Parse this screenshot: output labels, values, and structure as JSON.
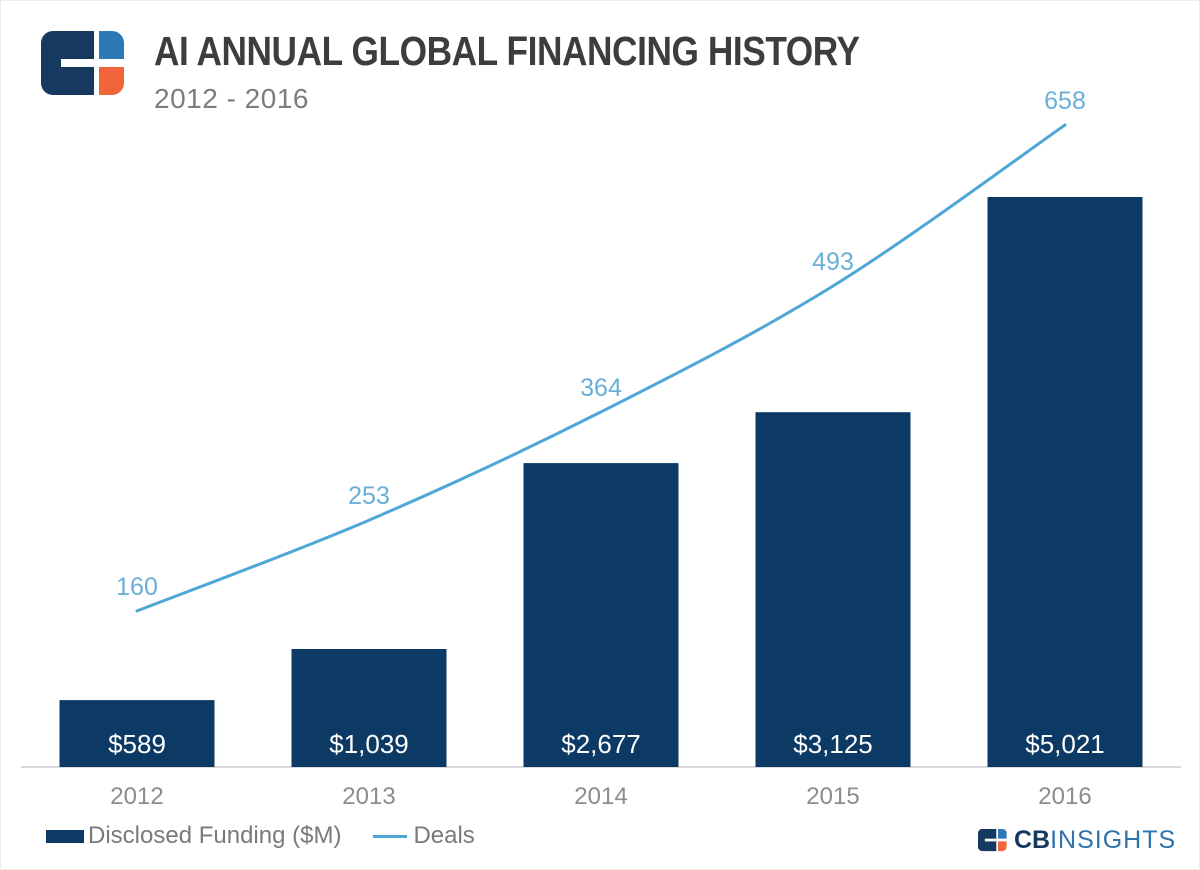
{
  "header": {
    "title": "AI ANNUAL GLOBAL FINANCING HISTORY",
    "subtitle": "2012 - 2016"
  },
  "chart_data": {
    "type": "combo-bar-line",
    "title": "AI ANNUAL GLOBAL FINANCING HISTORY",
    "subtitle": "2012 - 2016",
    "categories": [
      "2012",
      "2013",
      "2014",
      "2015",
      "2016"
    ],
    "series": [
      {
        "name": "Disclosed Funding ($M)",
        "type": "bar",
        "values": [
          589,
          1039,
          2677,
          3125,
          5021
        ],
        "data_labels": [
          "$589",
          "$1,039",
          "$2,677",
          "$3,125",
          "$5,021"
        ],
        "color": "#0d3a64",
        "label_color": "#ffffff"
      },
      {
        "name": "Deals",
        "type": "line",
        "values": [
          160,
          253,
          364,
          493,
          658
        ],
        "data_labels": [
          "160",
          "253",
          "364",
          "493",
          "658"
        ],
        "color": "#4fa7d6",
        "label_color": "#6bafd8"
      }
    ],
    "xlabel": "",
    "ylabel": "",
    "bar_axis": {
      "min": 0
    },
    "line_axis": {
      "min": 0
    },
    "grid": false,
    "legend_position": "bottom-left",
    "x_tick_color": "#8c8c8c",
    "axis_line_color": "#d9d9d9"
  },
  "legend": {
    "items": [
      {
        "label": "Disclosed Funding ($M)",
        "color": "#0d3a64"
      },
      {
        "label": "Deals",
        "color": "#4fa7d6"
      }
    ]
  },
  "footer_logo": {
    "cb": "CB",
    "insights": "INSIGHTS"
  },
  "colors": {
    "bar_navy": "#0d3a64",
    "deals_line": "#4fa7d6",
    "deals_label": "#6bafd8",
    "title": "#3d3d3d",
    "subtitle": "#7d7d7d",
    "x_ticks": "#8c8c8c",
    "logo_navy": "#16395f",
    "logo_blue": "#2d79b5",
    "logo_orange": "#f0653a",
    "wordmark_insights": "#2d73ad"
  }
}
